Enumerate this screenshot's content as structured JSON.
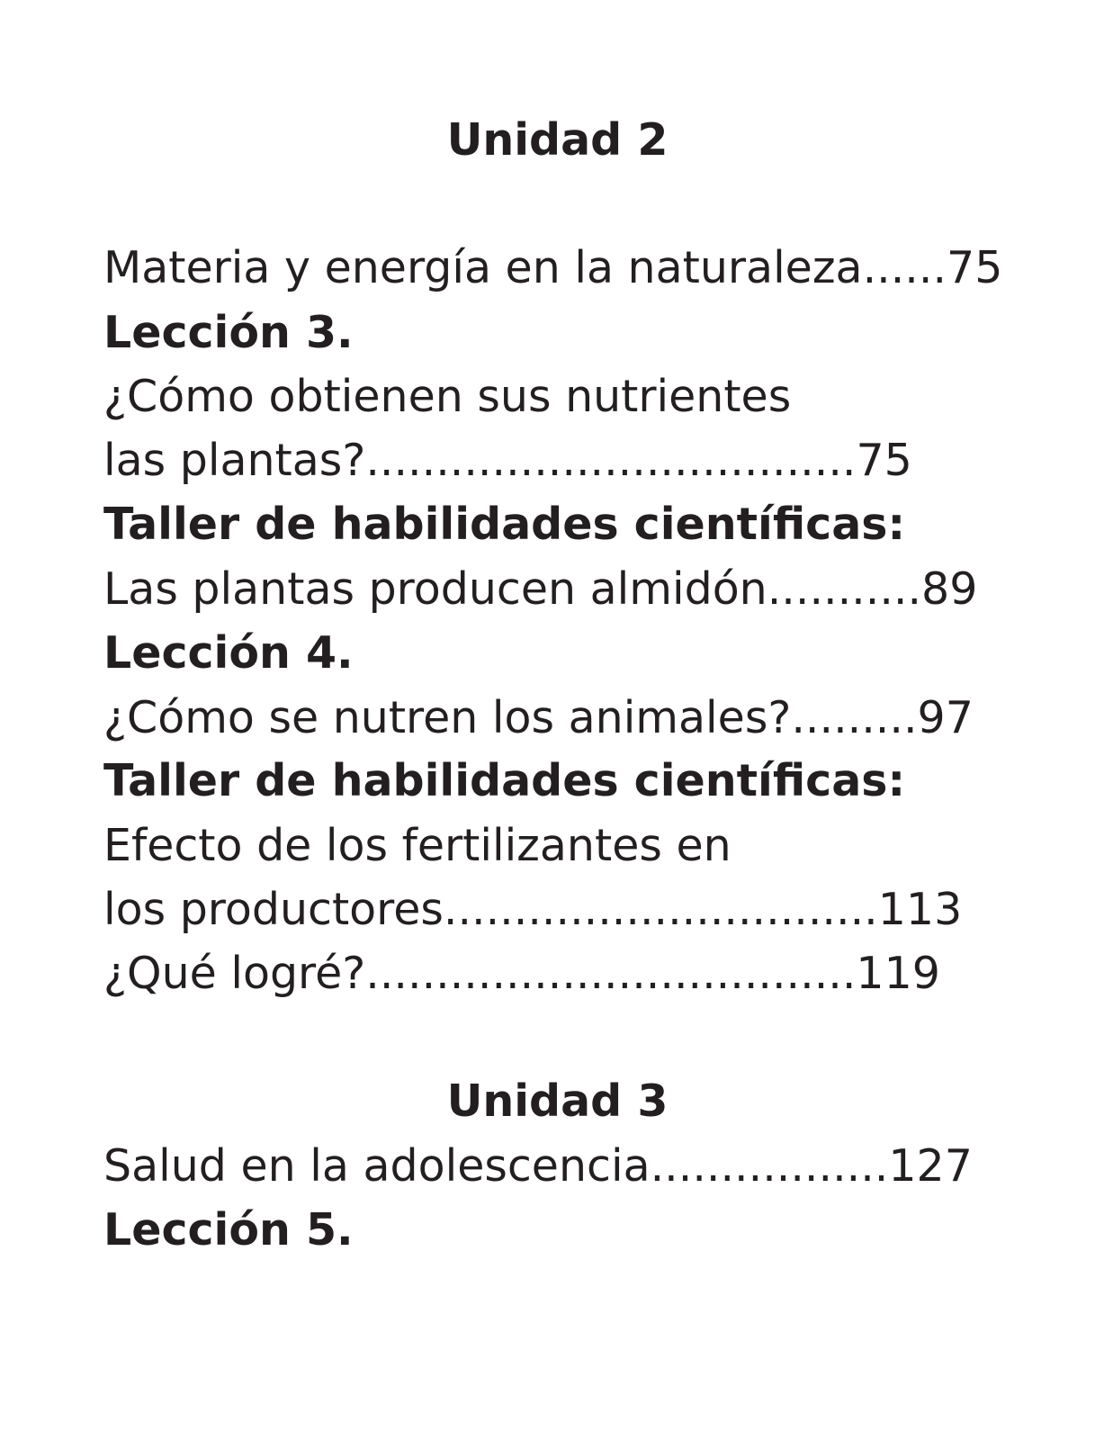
{
  "unit2": {
    "heading": "Unidad 2",
    "lines": [
      "Materia y energía en la naturaleza......75",
      "Lección 3.",
      "¿Cómo obtienen sus nutrientes",
      "las plantas?...................................75",
      "Taller de habilidades científicas:",
      "Las plantas producen almidón...........89",
      "Lección 4.",
      "¿Cómo se nutren los animales?.........97",
      "Taller de habilidades científicas:",
      "Efecto de los fertilizantes en",
      "los productores...............................113",
      "¿Qué logré?...................................119"
    ]
  },
  "unit3": {
    "heading": "Unidad 3",
    "lines": [
      "Salud en la adolescencia.................127",
      "Lección 5."
    ]
  }
}
